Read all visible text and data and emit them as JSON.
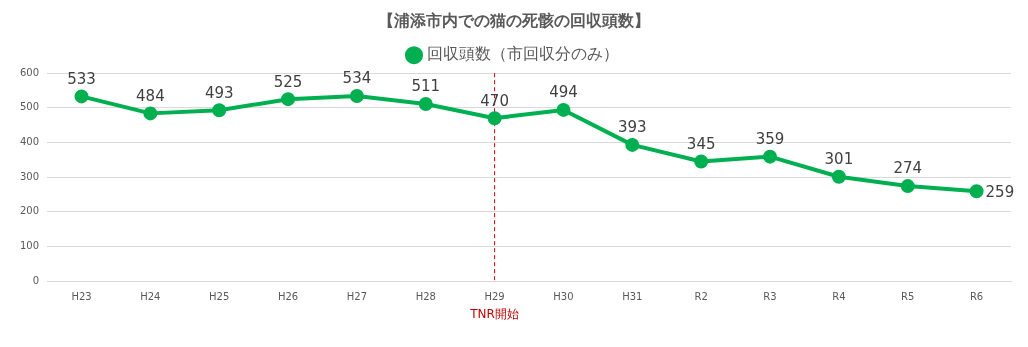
{
  "chart_data": {
    "type": "line",
    "title": "【浦添市内での猫の死骸の回収頭数】",
    "categories": [
      "H23",
      "H24",
      "H25",
      "H26",
      "H27",
      "H28",
      "H29",
      "H30",
      "H31",
      "R2",
      "R3",
      "R4",
      "R5",
      "R6"
    ],
    "series": [
      {
        "name": "回収頭数（市回収分のみ）",
        "color": "#00b050",
        "values": [
          533,
          484,
          493,
          525,
          534,
          511,
          470,
          494,
          393,
          345,
          359,
          301,
          274,
          259
        ]
      }
    ],
    "ylim": [
      0,
      600
    ],
    "yticks": [
      0,
      100,
      200,
      300,
      400,
      500,
      600
    ],
    "grid": "y",
    "legend": "top",
    "marker": "circle",
    "line_style": "solid",
    "data_labels": true,
    "ref_lines": [
      {
        "axis": "x",
        "value": "H29",
        "label": "TNR開始",
        "color": "#c00000",
        "line_style": "dashed"
      }
    ]
  }
}
